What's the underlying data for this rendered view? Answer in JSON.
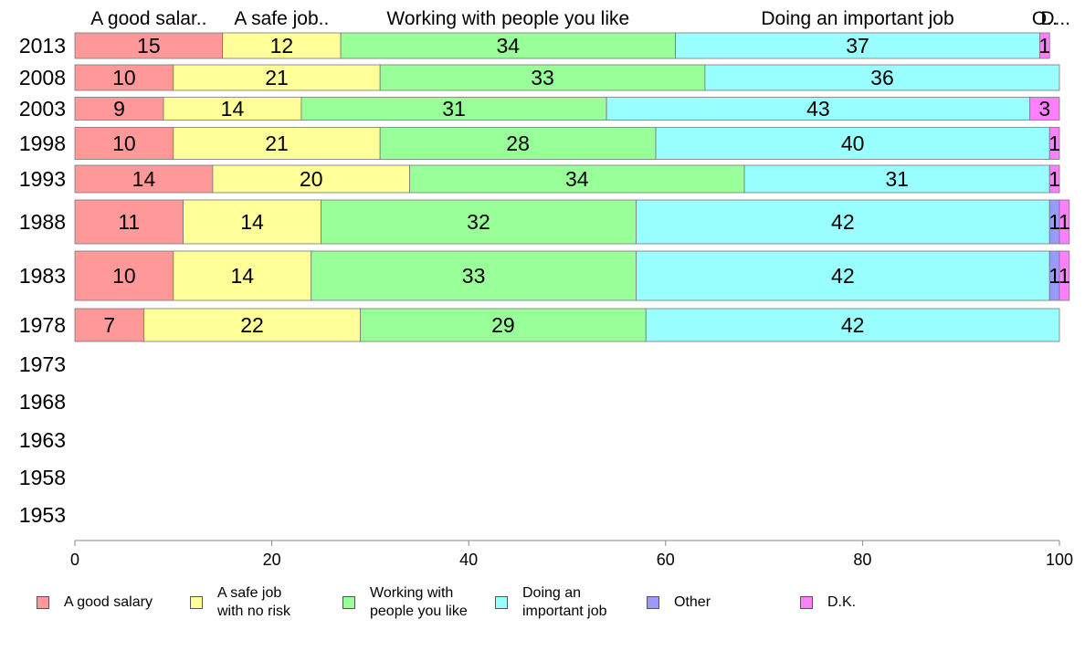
{
  "chart_data": {
    "type": "bar",
    "orientation": "horizontal",
    "stacked": true,
    "categories": [
      "2013",
      "2008",
      "2003",
      "1998",
      "1993",
      "1988",
      "1983",
      "1978",
      "1973",
      "1968",
      "1963",
      "1958",
      "1953"
    ],
    "series": [
      {
        "name": "A good salary",
        "legend_label": "A good salary",
        "header_label": "A good salar..",
        "color": "#ff9999",
        "values": [
          15,
          10,
          9,
          10,
          14,
          11,
          10,
          7,
          null,
          null,
          null,
          null,
          null
        ]
      },
      {
        "name": "A safe job with no risk",
        "legend_label": "A safe job\nwith no risk",
        "header_label": "A safe job..",
        "color": "#ffff99",
        "values": [
          12,
          21,
          14,
          21,
          20,
          14,
          14,
          22,
          null,
          null,
          null,
          null,
          null
        ]
      },
      {
        "name": "Working with people you like",
        "legend_label": "Working with\npeople you like",
        "header_label": "Working with people you like",
        "color": "#99ff99",
        "values": [
          34,
          33,
          31,
          28,
          34,
          32,
          33,
          29,
          null,
          null,
          null,
          null,
          null
        ]
      },
      {
        "name": "Doing an important job",
        "legend_label": "Doing an\nimportant job",
        "header_label": "Doing an important job",
        "color": "#99ffff",
        "values": [
          37,
          36,
          43,
          40,
          31,
          42,
          42,
          42,
          null,
          null,
          null,
          null,
          null
        ]
      },
      {
        "name": "Other",
        "legend_label": "Other",
        "header_label": "O..",
        "color": "#9999ff",
        "values": [
          0,
          0,
          0,
          0,
          0,
          1,
          1,
          0,
          null,
          null,
          null,
          null,
          null
        ]
      },
      {
        "name": "D.K.",
        "legend_label": "D.K.",
        "header_label": "D...",
        "color": "#ff80ff",
        "values": [
          1,
          0,
          3,
          1,
          1,
          1,
          1,
          0,
          null,
          null,
          null,
          null,
          null
        ]
      }
    ],
    "xlim": [
      0,
      100
    ],
    "xticks": [
      0,
      20,
      40,
      60,
      80,
      100
    ],
    "xlabel": "",
    "ylabel": "",
    "title": "",
    "grid": false,
    "legend_position": "bottom"
  }
}
